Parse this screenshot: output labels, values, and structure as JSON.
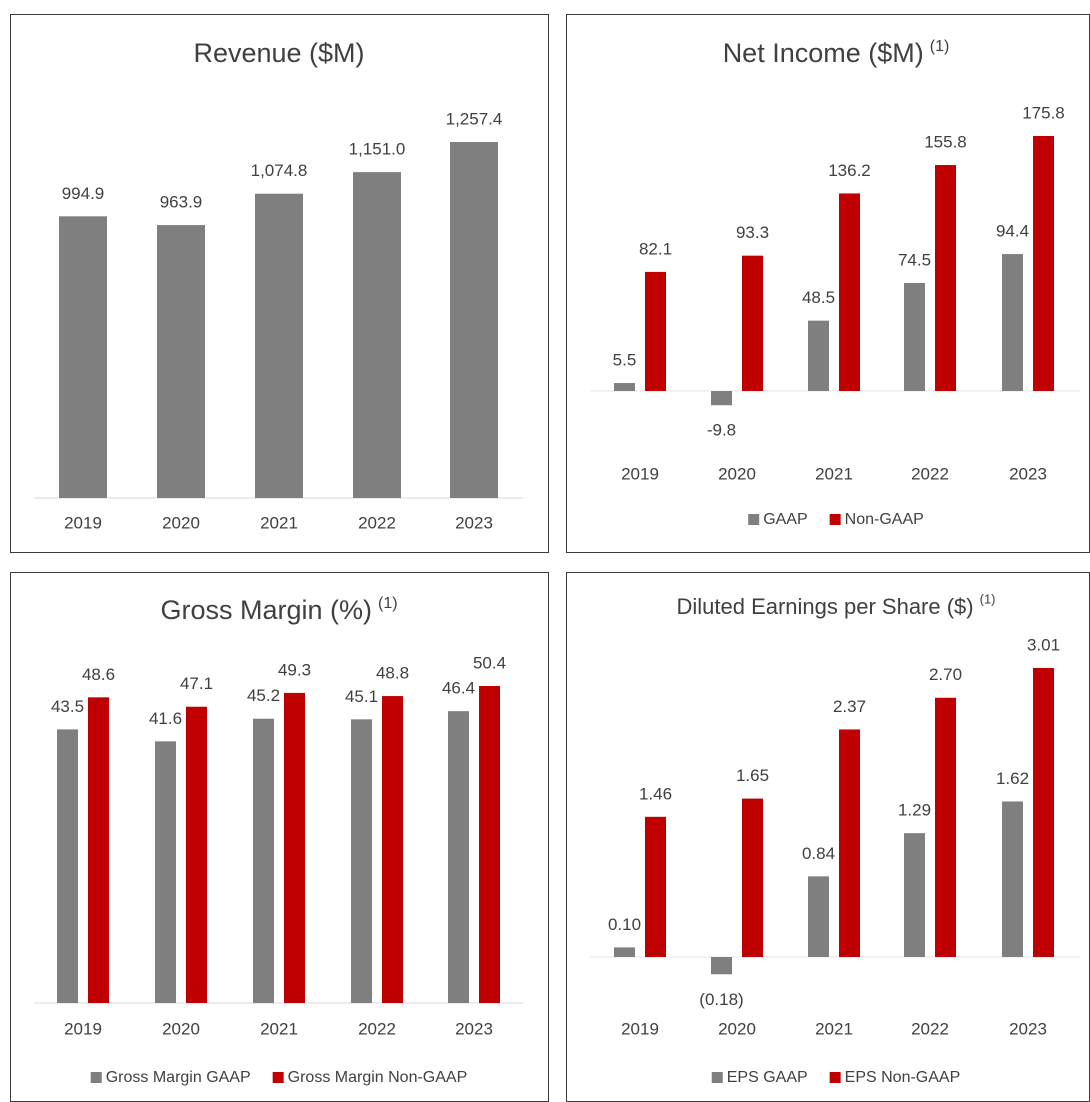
{
  "chart_data": [
    {
      "type": "bar",
      "title": "Revenue ($M)",
      "categories": [
        "2019",
        "2020",
        "2021",
        "2022",
        "2023"
      ],
      "values": [
        994.9,
        963.9,
        1074.8,
        1151.0,
        1257.4
      ],
      "value_labels": [
        "994.9",
        "963.9",
        "1,074.8",
        "1,151.0",
        "1,257.4"
      ],
      "color": "#7f7f7f"
    },
    {
      "type": "bar",
      "title": "Net Income ($M)",
      "title_note": "(1)",
      "categories": [
        "2019",
        "2020",
        "2021",
        "2022",
        "2023"
      ],
      "series": [
        {
          "name": "GAAP",
          "color": "#7f7f7f",
          "values": [
            5.5,
            -9.8,
            48.5,
            74.5,
            94.4
          ]
        },
        {
          "name": "Non-GAAP",
          "color": "#c00000",
          "values": [
            82.1,
            93.3,
            136.2,
            155.8,
            175.8
          ]
        }
      ]
    },
    {
      "type": "bar",
      "title": "Gross Margin (%)",
      "title_note": "(1)",
      "categories": [
        "2019",
        "2020",
        "2021",
        "2022",
        "2023"
      ],
      "series": [
        {
          "name": "Gross Margin GAAP",
          "color": "#7f7f7f",
          "values": [
            43.5,
            41.6,
            45.2,
            45.1,
            46.4
          ]
        },
        {
          "name": "Gross Margin Non-GAAP",
          "color": "#c00000",
          "values": [
            48.6,
            47.1,
            49.3,
            48.8,
            50.4
          ]
        }
      ]
    },
    {
      "type": "bar",
      "title": "Diluted Earnings per Share ($)",
      "title_note": "(1)",
      "categories": [
        "2019",
        "2020",
        "2021",
        "2022",
        "2023"
      ],
      "series": [
        {
          "name": "EPS GAAP",
          "color": "#7f7f7f",
          "values": [
            0.1,
            -0.18,
            0.84,
            1.29,
            1.62
          ],
          "value_labels": [
            "0.10",
            "(0.18)",
            "0.84",
            "1.29",
            "1.62"
          ]
        },
        {
          "name": "EPS Non-GAAP",
          "color": "#c00000",
          "values": [
            1.46,
            1.65,
            2.37,
            2.7,
            3.01
          ],
          "value_labels": [
            "1.46",
            "1.65",
            "2.37",
            "2.70",
            "3.01"
          ]
        }
      ]
    }
  ]
}
